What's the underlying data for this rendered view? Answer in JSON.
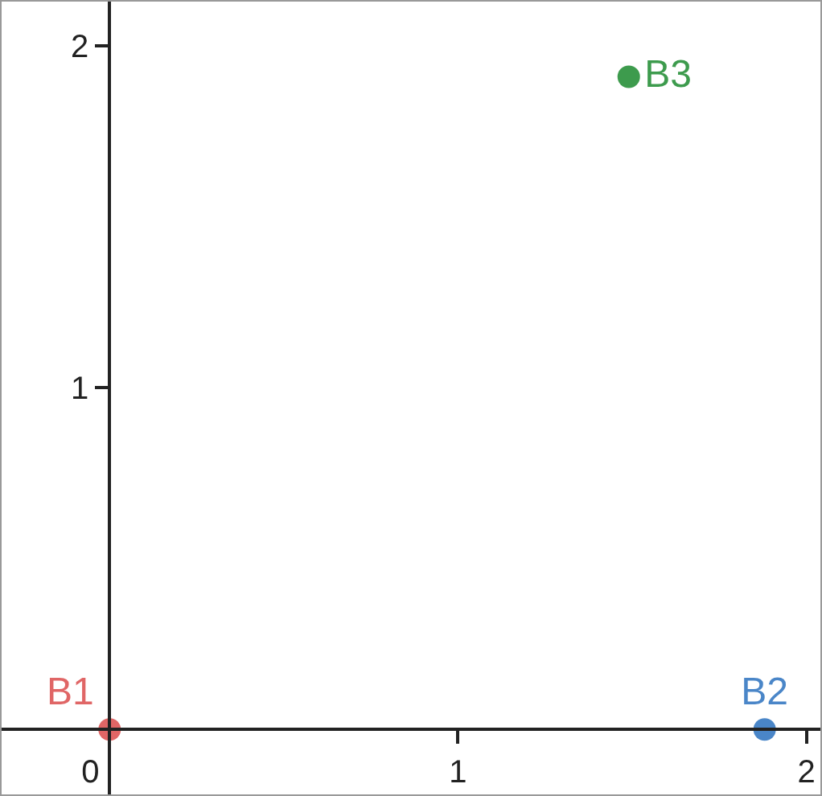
{
  "chart_data": {
    "type": "scatter",
    "xlim": [
      -0.31,
      2.04
    ],
    "ylim": [
      -0.19,
      2.13
    ],
    "xticks": [
      0,
      1,
      2
    ],
    "yticks": [
      1,
      2
    ],
    "grid": false,
    "legend": false,
    "marker": "circle",
    "series": [
      {
        "name": "B1",
        "color": "#e06666",
        "x": [
          0
        ],
        "values": [
          0
        ]
      },
      {
        "name": "B2",
        "color": "#4a86c8",
        "x": [
          1.88
        ],
        "values": [
          0
        ]
      },
      {
        "name": "B3",
        "color": "#3d9b4d",
        "x": [
          1.49
        ],
        "values": [
          1.91
        ]
      }
    ]
  }
}
